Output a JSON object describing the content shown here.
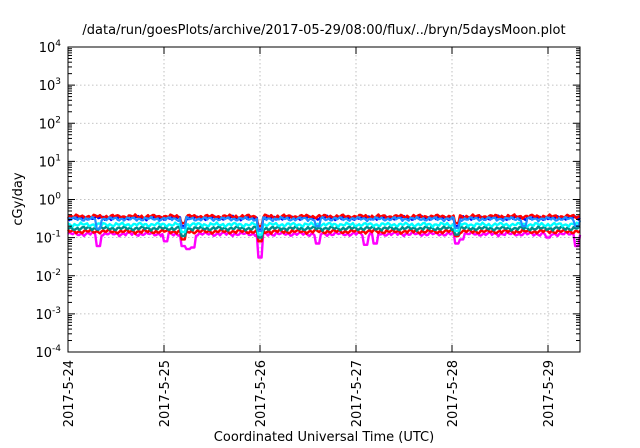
{
  "chart_data": {
    "type": "line",
    "title": "/data/run/goesPlots/archive/2017-05-29/08:00/flux/../bryn/5daysMoon.plot",
    "xlabel": "Coordinated Universal Time (UTC)",
    "ylabel": "cGy/day",
    "yscale": "log",
    "ylim": [
      0.0001,
      10000
    ],
    "y_ticks": [
      {
        "value": 0.0001,
        "base": "10",
        "exp": "-4"
      },
      {
        "value": 0.001,
        "base": "10",
        "exp": "-3"
      },
      {
        "value": 0.01,
        "base": "10",
        "exp": "-2"
      },
      {
        "value": 0.1,
        "base": "10",
        "exp": "-1"
      },
      {
        "value": 1,
        "base": "10",
        "exp": "0"
      },
      {
        "value": 10,
        "base": "10",
        "exp": "1"
      },
      {
        "value": 100,
        "base": "10",
        "exp": "2"
      },
      {
        "value": 1000,
        "base": "10",
        "exp": "3"
      },
      {
        "value": 10000,
        "base": "10",
        "exp": "4"
      }
    ],
    "xlim": [
      "2017-05-24 00:00",
      "2017-05-29 08:00"
    ],
    "x_ticks": [
      "2017-5-24",
      "2017-5-25",
      "2017-5-26",
      "2017-5-27",
      "2017-5-28",
      "2017-5-29"
    ],
    "grid": true,
    "series": [
      {
        "color": "#ff00ff",
        "base": 0.125,
        "dips": [
          [
            0.32,
            0.06
          ],
          [
            1.02,
            0.08
          ],
          [
            1.2,
            0.06
          ],
          [
            1.25,
            0.05
          ],
          [
            1.3,
            0.055
          ],
          [
            2.0,
            0.03
          ],
          [
            2.6,
            0.07
          ],
          [
            3.1,
            0.065
          ],
          [
            3.2,
            0.07
          ],
          [
            4.05,
            0.07
          ],
          [
            4.1,
            0.09
          ],
          [
            5.0,
            0.1
          ],
          [
            5.3,
            0.06
          ]
        ]
      },
      {
        "color": "#ff0000",
        "base": 0.145,
        "dips": [
          [
            1.2,
            0.09
          ],
          [
            2.0,
            0.08
          ],
          [
            4.05,
            0.11
          ]
        ]
      },
      {
        "color": "#008b8b",
        "base": 0.175,
        "dips": [
          [
            1.2,
            0.11
          ],
          [
            2.0,
            0.1
          ],
          [
            4.05,
            0.12
          ]
        ]
      },
      {
        "color": "#00ffff",
        "base": 0.22,
        "dips": [
          [
            1.2,
            0.14
          ],
          [
            2.0,
            0.12
          ],
          [
            4.05,
            0.15
          ]
        ]
      },
      {
        "color": "#0000ff",
        "base": 0.33,
        "dips": [
          [
            1.2,
            0.2
          ],
          [
            2.0,
            0.16
          ],
          [
            4.05,
            0.2
          ]
        ]
      },
      {
        "color": "#ff0000",
        "base": 0.36,
        "dips": [
          [
            1.2,
            0.24
          ],
          [
            2.0,
            0.2
          ],
          [
            4.05,
            0.24
          ]
        ]
      },
      {
        "color": "#1e90ff",
        "base": 0.31,
        "dips": [
          [
            0.32,
            0.17
          ],
          [
            1.2,
            0.18
          ],
          [
            2.0,
            0.15
          ],
          [
            2.6,
            0.2
          ],
          [
            4.05,
            0.18
          ],
          [
            4.75,
            0.2
          ],
          [
            5.3,
            0.2
          ]
        ]
      }
    ]
  }
}
